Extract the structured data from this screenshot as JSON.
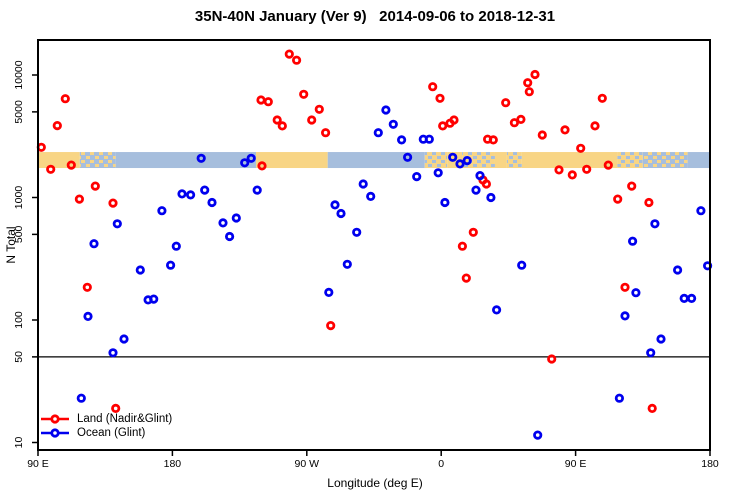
{
  "chart_data": {
    "type": "scatter",
    "title": "35N-40N January (Ver 9)   2014-09-06 to 2018-12-31",
    "xlabel": "Longitude (deg E)",
    "ylabel": "N Total",
    "x_axis": {
      "min": 90,
      "max": 540,
      "ticks": [
        {
          "value": 90,
          "label": "90 E"
        },
        {
          "value": 180,
          "label": "180"
        },
        {
          "value": 270,
          "label": "90 W"
        },
        {
          "value": 360,
          "label": "0"
        },
        {
          "value": 450,
          "label": "90 E"
        },
        {
          "value": 540,
          "label": "180"
        }
      ]
    },
    "y_axis": {
      "scale": "log",
      "min": 8.7,
      "max": 19300,
      "ticks": [
        {
          "value": 10,
          "label": "10"
        },
        {
          "value": 50,
          "label": "50"
        },
        {
          "value": 100,
          "label": "100"
        },
        {
          "value": 500,
          "label": "500"
        },
        {
          "value": 1000,
          "label": "1000"
        },
        {
          "value": 5000,
          "label": "5000"
        },
        {
          "value": 10000,
          "label": "10000"
        }
      ]
    },
    "reference_line": {
      "y": 50,
      "color": "#000000"
    },
    "map_band": {
      "n_top": 2350,
      "n_bottom": 1740,
      "land_color": "#F8D585",
      "ocean_color": "#A6BEDD",
      "segments": [
        [
          90,
          118,
          "land"
        ],
        [
          118,
          142,
          "mix-ocean"
        ],
        [
          142,
          236,
          "ocean"
        ],
        [
          236,
          284,
          "land"
        ],
        [
          284,
          349,
          "ocean"
        ],
        [
          349,
          364,
          "mix-land"
        ],
        [
          364,
          374,
          "land"
        ],
        [
          374,
          396,
          "mix-land"
        ],
        [
          396,
          404,
          "land"
        ],
        [
          404,
          414,
          "mix-land"
        ],
        [
          414,
          478,
          "land"
        ],
        [
          478,
          495,
          "mix-land"
        ],
        [
          495,
          525,
          "mix-ocean"
        ],
        [
          525,
          540,
          "ocean"
        ]
      ]
    },
    "series": [
      {
        "name": "Land (Nadir&Glint)",
        "color": "#FF0000",
        "points": [
          [
            108.3,
            6400
          ],
          [
            102.9,
            3860
          ],
          [
            92.2,
            2570
          ],
          [
            98.5,
            1700
          ],
          [
            112.3,
            1840
          ],
          [
            128.4,
            1240
          ],
          [
            117.7,
            970
          ],
          [
            140.2,
            900
          ],
          [
            239.3,
            6250
          ],
          [
            240.0,
            1810
          ],
          [
            258.3,
            14800
          ],
          [
            263.2,
            13200
          ],
          [
            267.9,
            6960
          ],
          [
            244.2,
            6050
          ],
          [
            278.4,
            5250
          ],
          [
            250.2,
            4290
          ],
          [
            253.6,
            3840
          ],
          [
            273.3,
            4290
          ],
          [
            282.6,
            3380
          ],
          [
            354.3,
            8030
          ],
          [
            359.2,
            6450
          ],
          [
            368.6,
            4290
          ],
          [
            365.9,
            4040
          ],
          [
            361.0,
            3840
          ],
          [
            381.5,
            520
          ],
          [
            374.2,
            400
          ],
          [
            422.8,
            10100
          ],
          [
            417.9,
            8650
          ],
          [
            419.0,
            7300
          ],
          [
            403.2,
            5940
          ],
          [
            467.9,
            6450
          ],
          [
            409.0,
            4080
          ],
          [
            413.4,
            4340
          ],
          [
            463.0,
            3840
          ],
          [
            427.7,
            3240
          ],
          [
            442.9,
            3560
          ],
          [
            391.1,
            2990
          ],
          [
            394.9,
            2950
          ],
          [
            453.4,
            2520
          ],
          [
            438.9,
            1680
          ],
          [
            447.8,
            1530
          ],
          [
            457.4,
            1700
          ],
          [
            471.9,
            1840
          ],
          [
            487.6,
            1240
          ],
          [
            478.2,
            970
          ],
          [
            499.1,
            910
          ],
          [
            388.0,
            1390
          ],
          [
            390.3,
            1290
          ],
          [
            123.0,
            185
          ],
          [
            142.0,
            19
          ],
          [
            376.8,
            220
          ],
          [
            286.0,
            90
          ],
          [
            483.1,
            185
          ],
          [
            434.0,
            48
          ],
          [
            501.3,
            19
          ]
        ]
      },
      {
        "name": "Ocean (Glint)",
        "color": "#0000EE",
        "points": [
          [
            199.3,
            2090
          ],
          [
            228.4,
            1920
          ],
          [
            232.8,
            2090
          ],
          [
            236.8,
            1150
          ],
          [
            186.4,
            1070
          ],
          [
            192.2,
            1050
          ],
          [
            201.6,
            1150
          ],
          [
            206.5,
            910
          ],
          [
            173.0,
            780
          ],
          [
            213.9,
            620
          ],
          [
            222.8,
            680
          ],
          [
            218.3,
            480
          ],
          [
            143.1,
            610
          ],
          [
            127.5,
            420
          ],
          [
            182.6,
            400
          ],
          [
            323.0,
            5180
          ],
          [
            327.9,
            3960
          ],
          [
            317.9,
            3380
          ],
          [
            333.5,
            2950
          ],
          [
            348.0,
            2990
          ],
          [
            352.0,
            2990
          ],
          [
            337.5,
            2130
          ],
          [
            367.7,
            2130
          ],
          [
            372.6,
            1880
          ],
          [
            377.4,
            2000
          ],
          [
            343.6,
            1480
          ],
          [
            358.0,
            1590
          ],
          [
            386.0,
            1510
          ],
          [
            383.3,
            1150
          ],
          [
            307.8,
            1290
          ],
          [
            312.8,
            1020
          ],
          [
            362.5,
            910
          ],
          [
            288.9,
            870
          ],
          [
            292.9,
            740
          ],
          [
            303.4,
            520
          ],
          [
            393.3,
            1000
          ],
          [
            533.9,
            780
          ],
          [
            503.1,
            610
          ],
          [
            488.2,
            440
          ],
          [
            178.8,
            280
          ],
          [
            158.5,
            256
          ],
          [
            163.7,
            146
          ],
          [
            167.5,
            148
          ],
          [
            123.5,
            107
          ],
          [
            147.6,
            70
          ],
          [
            140.2,
            54
          ],
          [
            119.0,
            23
          ],
          [
            297.1,
            285
          ],
          [
            284.7,
            168
          ],
          [
            413.9,
            280
          ],
          [
            518.3,
            256
          ],
          [
            538.4,
            277
          ],
          [
            490.4,
            167
          ],
          [
            522.7,
            150
          ],
          [
            527.7,
            150
          ],
          [
            397.1,
            121
          ],
          [
            483.1,
            108
          ],
          [
            507.2,
            70
          ],
          [
            500.3,
            54
          ],
          [
            479.3,
            23
          ],
          [
            424.6,
            11.5
          ]
        ]
      }
    ]
  }
}
